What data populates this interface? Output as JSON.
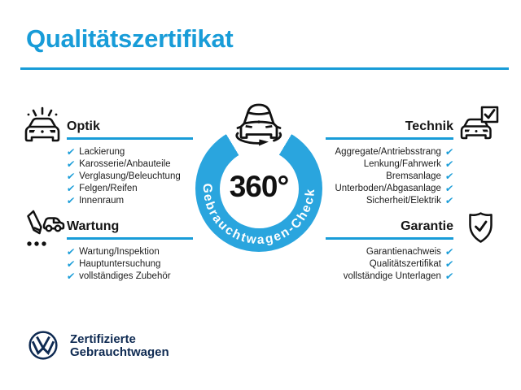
{
  "page": {
    "title": "Qualitätszertifikat"
  },
  "colors": {
    "accent_blue": "#189CD8",
    "ring_blue": "#2AA5DE",
    "vw_dark_navy": "#0E2A52",
    "text_black": "#151515"
  },
  "checkmark": "✔",
  "center": {
    "value": "360°",
    "ring_label": "Gebrauchtwagen-Check",
    "icon": "car-rotation-icon"
  },
  "sections": [
    {
      "id": "optik",
      "title": "Optik",
      "icon": "sparkling-car-icon",
      "align": "left",
      "items": [
        "Lackierung",
        "Karosserie/Anbauteile",
        "Verglasung/Beleuchtung",
        "Felgen/Reifen",
        "Innenraum"
      ]
    },
    {
      "id": "technik",
      "title": "Technik",
      "icon": "car-checkbox-icon",
      "align": "right",
      "items": [
        "Aggregate/Antriebsstrang",
        "Lenkung/Fahrwerk",
        "Bremsanlage",
        "Unterboden/Abgasanlage",
        "Sicherheit/Elektrik"
      ]
    },
    {
      "id": "wartung",
      "title": "Wartung",
      "icon": "service-checklist-icon",
      "align": "left",
      "items": [
        "Wartung/Inspektion",
        "Hauptuntersuchung",
        "vollständiges Zubehör"
      ]
    },
    {
      "id": "garantie",
      "title": "Garantie",
      "icon": "shield-check-icon",
      "align": "right",
      "items": [
        "Garantienachweis",
        "Qualitätszertifikat",
        "vollständige Unterlagen"
      ]
    }
  ],
  "footer": {
    "logo": "vw-logo",
    "label_line1": "Zertifizierte",
    "label_line2": "Gebrauchtwagen"
  }
}
